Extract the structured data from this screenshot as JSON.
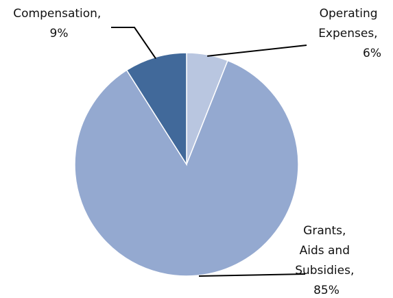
{
  "chart_data": {
    "type": "pie",
    "title": "",
    "start": "12 o'clock, clockwise",
    "slices": [
      {
        "name": "Operating Expenses",
        "value": 6,
        "pct_label": "6%",
        "color": "#b9c6e0",
        "label_lines": [
          "Operating",
          "Expenses,",
          "6%"
        ]
      },
      {
        "name": "Grants, Aids and Subsidies",
        "value": 85,
        "pct_label": "85%",
        "color": "#94a9d0",
        "label_lines": [
          "Grants,",
          "Aids and",
          "Subsidies,",
          "85%"
        ]
      },
      {
        "name": "Compensation",
        "value": 9,
        "pct_label": "9%",
        "color": "#41699a",
        "label_lines": [
          "Compensation,",
          "9%"
        ]
      }
    ]
  }
}
